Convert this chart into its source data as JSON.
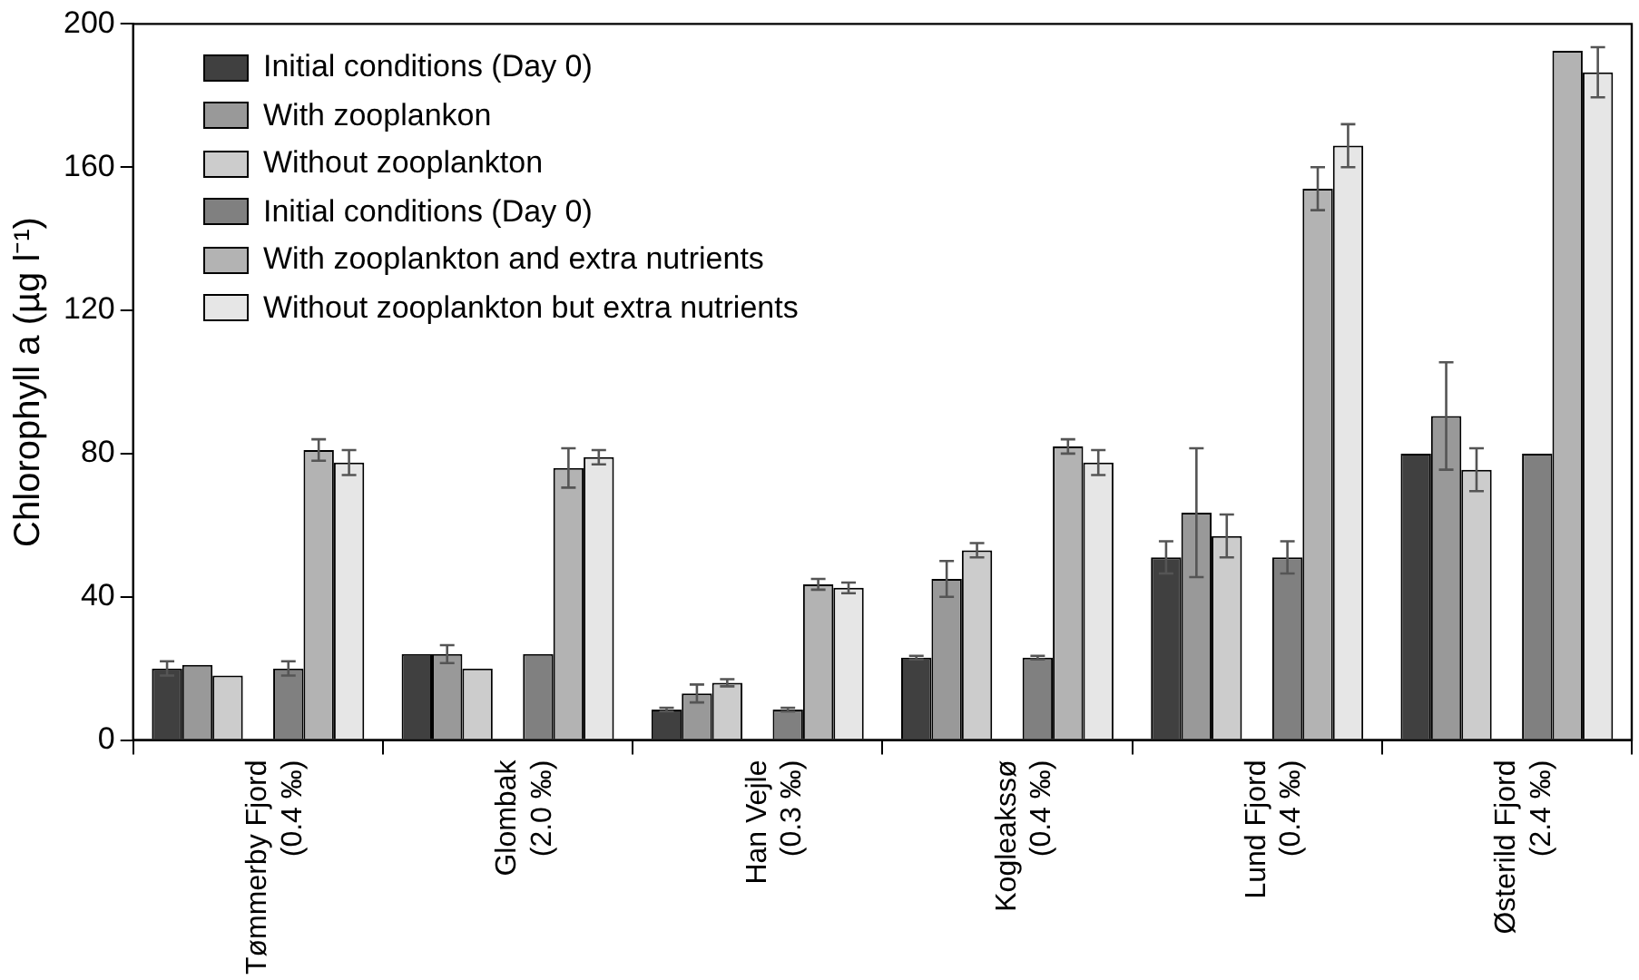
{
  "chart_data": {
    "type": "bar",
    "ylabel": "Chlorophyll a (µg l⁻¹)",
    "categories": [
      "Tømmerby Fjord\n(0.4 ‰)",
      "Glombak\n(2.0 ‰)",
      "Han Vejle\n(0.3 ‰)",
      "Kogleakssø\n(0.4 ‰)",
      "Lund Fjord\n(0.4 ‰)",
      "Østerild Fjord\n(2.4 ‰)"
    ],
    "series": [
      {
        "name": "Initial conditions (Day 0)",
        "color": "#404040",
        "values": [
          20,
          24,
          8.5,
          23,
          51,
          80
        ],
        "errors": [
          2,
          null,
          0.5,
          0.5,
          4.5,
          null
        ]
      },
      {
        "name": "With zooplankon",
        "color": "#999999",
        "values": [
          21,
          24,
          13,
          45,
          63.5,
          90.5
        ],
        "errors": [
          null,
          2.5,
          2.5,
          5,
          18,
          15
        ]
      },
      {
        "name": "Without zooplankton",
        "color": "#cccccc",
        "values": [
          18,
          20,
          16,
          53,
          57,
          75.5
        ],
        "errors": [
          null,
          null,
          1,
          2,
          6,
          6
        ]
      },
      {
        "name": "Initial conditions (Day 0)",
        "color": "#808080",
        "values": [
          20,
          24,
          8.5,
          23,
          51,
          80
        ],
        "errors": [
          2,
          null,
          0.5,
          0.5,
          4.5,
          null
        ]
      },
      {
        "name": "With zooplankton and extra nutrients",
        "color": "#b3b3b3",
        "values": [
          81,
          76,
          43.5,
          82,
          154,
          192.5
        ],
        "errors": [
          3,
          5.5,
          1.5,
          2,
          6,
          null
        ]
      },
      {
        "name": "Without zooplankton but extra nutrients",
        "color": "#e6e6e6",
        "values": [
          77.5,
          79,
          42.5,
          77.5,
          166,
          186.5
        ],
        "errors": [
          3.5,
          2,
          1.5,
          3.5,
          6,
          7
        ]
      }
    ],
    "ylim": [
      0,
      200
    ],
    "yticks": [
      0,
      40,
      80,
      120,
      160,
      200
    ],
    "grid": false,
    "legend": "top left"
  }
}
